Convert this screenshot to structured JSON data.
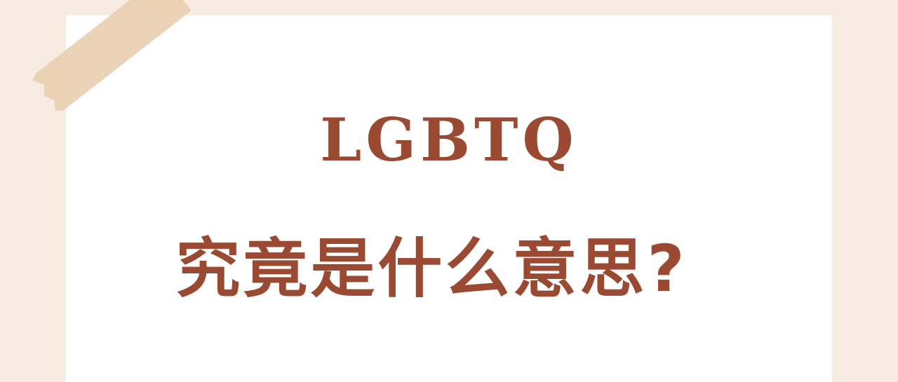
{
  "heading": {
    "line1": "LGBTQ",
    "line2": "究竟是什么意思?"
  },
  "colors": {
    "background": "#f7ebe1",
    "paper": "#ffffff",
    "tape": "#e9cfb1",
    "text": "#9a4a33"
  }
}
